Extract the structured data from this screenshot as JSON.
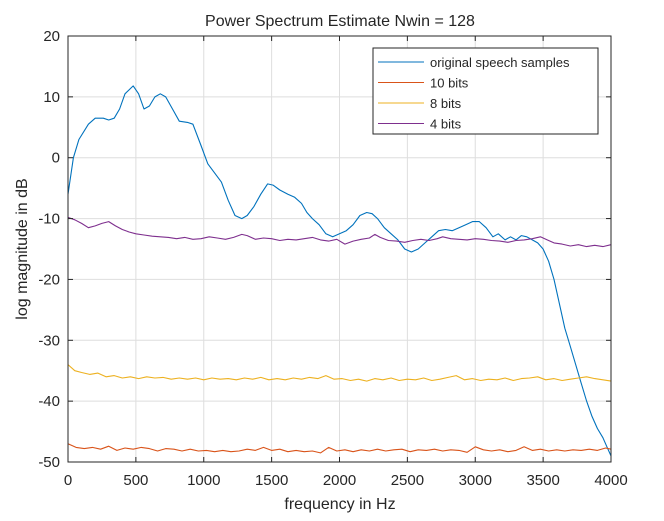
{
  "chart_data": {
    "type": "line",
    "title": "Power Spectrum Estimate Nwin = 128",
    "xlabel": "frequency in Hz",
    "ylabel": "log magnitude in dB",
    "xlim": [
      0,
      4000
    ],
    "ylim": [
      -50,
      20
    ],
    "xticks": [
      0,
      500,
      1000,
      1500,
      2000,
      2500,
      3000,
      3500,
      4000
    ],
    "yticks": [
      20,
      10,
      0,
      -10,
      -20,
      -30,
      -40,
      -50
    ],
    "grid": true,
    "legend_position": "top-right",
    "series": [
      {
        "name": "original speech samples",
        "color": "#0072BD",
        "points": [
          [
            0,
            -6
          ],
          [
            40,
            0
          ],
          [
            80,
            3
          ],
          [
            150,
            5.5
          ],
          [
            200,
            6.5
          ],
          [
            260,
            6.5
          ],
          [
            300,
            6.2
          ],
          [
            340,
            6.5
          ],
          [
            380,
            8
          ],
          [
            420,
            10.5
          ],
          [
            480,
            11.8
          ],
          [
            520,
            10.5
          ],
          [
            560,
            8
          ],
          [
            600,
            8.5
          ],
          [
            640,
            10
          ],
          [
            680,
            10.5
          ],
          [
            720,
            10
          ],
          [
            770,
            8
          ],
          [
            820,
            6
          ],
          [
            880,
            5.8
          ],
          [
            920,
            5.5
          ],
          [
            980,
            2
          ],
          [
            1030,
            -1
          ],
          [
            1080,
            -2.5
          ],
          [
            1130,
            -4
          ],
          [
            1180,
            -7
          ],
          [
            1230,
            -9.5
          ],
          [
            1280,
            -10
          ],
          [
            1320,
            -9.5
          ],
          [
            1370,
            -8
          ],
          [
            1420,
            -6
          ],
          [
            1470,
            -4.3
          ],
          [
            1510,
            -4.5
          ],
          [
            1560,
            -5.3
          ],
          [
            1620,
            -6
          ],
          [
            1670,
            -6.5
          ],
          [
            1720,
            -7.5
          ],
          [
            1760,
            -9
          ],
          [
            1800,
            -10
          ],
          [
            1850,
            -11
          ],
          [
            1900,
            -12.5
          ],
          [
            1950,
            -13
          ],
          [
            2000,
            -12.5
          ],
          [
            2050,
            -12
          ],
          [
            2100,
            -11
          ],
          [
            2150,
            -9.5
          ],
          [
            2200,
            -9
          ],
          [
            2240,
            -9.2
          ],
          [
            2280,
            -10
          ],
          [
            2330,
            -11.5
          ],
          [
            2380,
            -12.5
          ],
          [
            2430,
            -13.5
          ],
          [
            2480,
            -15
          ],
          [
            2530,
            -15.5
          ],
          [
            2580,
            -15
          ],
          [
            2630,
            -14
          ],
          [
            2680,
            -13
          ],
          [
            2730,
            -12
          ],
          [
            2780,
            -11.8
          ],
          [
            2830,
            -12
          ],
          [
            2880,
            -11.5
          ],
          [
            2930,
            -11
          ],
          [
            2980,
            -10.5
          ],
          [
            3030,
            -10.5
          ],
          [
            3080,
            -11.5
          ],
          [
            3130,
            -13
          ],
          [
            3170,
            -12.5
          ],
          [
            3220,
            -13.5
          ],
          [
            3260,
            -13
          ],
          [
            3300,
            -13.5
          ],
          [
            3340,
            -12.8
          ],
          [
            3380,
            -13
          ],
          [
            3420,
            -13.5
          ],
          [
            3460,
            -14
          ],
          [
            3500,
            -15
          ],
          [
            3540,
            -17
          ],
          [
            3580,
            -20
          ],
          [
            3620,
            -24
          ],
          [
            3660,
            -28
          ],
          [
            3700,
            -31
          ],
          [
            3740,
            -34
          ],
          [
            3780,
            -37
          ],
          [
            3820,
            -40
          ],
          [
            3860,
            -42.5
          ],
          [
            3900,
            -44.5
          ],
          [
            3940,
            -46
          ],
          [
            3970,
            -47.5
          ],
          [
            4000,
            -49
          ]
        ]
      },
      {
        "name": "10 bits",
        "color": "#D95319",
        "points": [
          [
            0,
            -47
          ],
          [
            60,
            -47.6
          ],
          [
            120,
            -47.8
          ],
          [
            180,
            -47.6
          ],
          [
            240,
            -47.9
          ],
          [
            300,
            -47.4
          ],
          [
            360,
            -48.1
          ],
          [
            420,
            -47.7
          ],
          [
            480,
            -47.9
          ],
          [
            540,
            -47.6
          ],
          [
            600,
            -47.8
          ],
          [
            660,
            -48.2
          ],
          [
            720,
            -47.8
          ],
          [
            780,
            -47.9
          ],
          [
            840,
            -48.2
          ],
          [
            900,
            -47.9
          ],
          [
            960,
            -48.2
          ],
          [
            1020,
            -48.1
          ],
          [
            1080,
            -48.3
          ],
          [
            1140,
            -48.1
          ],
          [
            1200,
            -48.3
          ],
          [
            1260,
            -48.2
          ],
          [
            1320,
            -47.9
          ],
          [
            1380,
            -48.1
          ],
          [
            1440,
            -47.6
          ],
          [
            1500,
            -48.1
          ],
          [
            1560,
            -47.9
          ],
          [
            1620,
            -48.3
          ],
          [
            1680,
            -48.1
          ],
          [
            1740,
            -48.3
          ],
          [
            1800,
            -48.2
          ],
          [
            1860,
            -48.5
          ],
          [
            1920,
            -47.6
          ],
          [
            1980,
            -48.2
          ],
          [
            2040,
            -48.0
          ],
          [
            2100,
            -48.3
          ],
          [
            2160,
            -48.0
          ],
          [
            2220,
            -48.2
          ],
          [
            2280,
            -47.9
          ],
          [
            2340,
            -48.2
          ],
          [
            2400,
            -48.0
          ],
          [
            2460,
            -47.9
          ],
          [
            2520,
            -48.3
          ],
          [
            2580,
            -48.0
          ],
          [
            2640,
            -48.1
          ],
          [
            2700,
            -47.9
          ],
          [
            2760,
            -48.2
          ],
          [
            2820,
            -48.0
          ],
          [
            2880,
            -48.1
          ],
          [
            2940,
            -48.4
          ],
          [
            3000,
            -47.5
          ],
          [
            3060,
            -48.0
          ],
          [
            3120,
            -48.2
          ],
          [
            3180,
            -48.0
          ],
          [
            3240,
            -48.3
          ],
          [
            3300,
            -48.1
          ],
          [
            3360,
            -47.5
          ],
          [
            3420,
            -48.1
          ],
          [
            3480,
            -47.9
          ],
          [
            3540,
            -48.2
          ],
          [
            3600,
            -48.0
          ],
          [
            3660,
            -48.2
          ],
          [
            3720,
            -48.0
          ],
          [
            3780,
            -48.1
          ],
          [
            3840,
            -47.9
          ],
          [
            3900,
            -48.1
          ],
          [
            3960,
            -47.7
          ],
          [
            4000,
            -47.9
          ]
        ]
      },
      {
        "name": "8 bits",
        "color": "#EDB120",
        "points": [
          [
            0,
            -34
          ],
          [
            50,
            -35
          ],
          [
            100,
            -35.3
          ],
          [
            160,
            -35.6
          ],
          [
            220,
            -35.4
          ],
          [
            280,
            -36
          ],
          [
            340,
            -35.8
          ],
          [
            400,
            -36.2
          ],
          [
            460,
            -36
          ],
          [
            520,
            -36.3
          ],
          [
            580,
            -36
          ],
          [
            640,
            -36.2
          ],
          [
            700,
            -36.1
          ],
          [
            760,
            -36.4
          ],
          [
            820,
            -36.2
          ],
          [
            880,
            -36.4
          ],
          [
            940,
            -36.2
          ],
          [
            1000,
            -36.5
          ],
          [
            1060,
            -36.2
          ],
          [
            1120,
            -36.4
          ],
          [
            1180,
            -36.3
          ],
          [
            1240,
            -36.5
          ],
          [
            1300,
            -36.2
          ],
          [
            1360,
            -36.4
          ],
          [
            1420,
            -36.1
          ],
          [
            1480,
            -36.5
          ],
          [
            1540,
            -36.3
          ],
          [
            1600,
            -36.5
          ],
          [
            1660,
            -36.2
          ],
          [
            1720,
            -36.4
          ],
          [
            1780,
            -36.1
          ],
          [
            1840,
            -36.3
          ],
          [
            1900,
            -35.8
          ],
          [
            1960,
            -36.4
          ],
          [
            2020,
            -36.3
          ],
          [
            2080,
            -36.6
          ],
          [
            2140,
            -36.4
          ],
          [
            2200,
            -36.7
          ],
          [
            2260,
            -36.3
          ],
          [
            2320,
            -36.5
          ],
          [
            2380,
            -36.2
          ],
          [
            2440,
            -36.6
          ],
          [
            2500,
            -36.4
          ],
          [
            2560,
            -36.5
          ],
          [
            2620,
            -36.2
          ],
          [
            2680,
            -36.6
          ],
          [
            2740,
            -36.4
          ],
          [
            2800,
            -36.1
          ],
          [
            2860,
            -35.8
          ],
          [
            2920,
            -36.5
          ],
          [
            2980,
            -36.3
          ],
          [
            3040,
            -36.6
          ],
          [
            3100,
            -36.4
          ],
          [
            3160,
            -36.5
          ],
          [
            3220,
            -36.2
          ],
          [
            3280,
            -36.6
          ],
          [
            3340,
            -36.3
          ],
          [
            3400,
            -36.2
          ],
          [
            3460,
            -36.0
          ],
          [
            3520,
            -36.5
          ],
          [
            3580,
            -36.3
          ],
          [
            3640,
            -36.6
          ],
          [
            3700,
            -36.4
          ],
          [
            3760,
            -36.2
          ],
          [
            3820,
            -36.0
          ],
          [
            3880,
            -36.3
          ],
          [
            3940,
            -36.5
          ],
          [
            4000,
            -36.7
          ]
        ]
      },
      {
        "name": "4 bits",
        "color": "#7E2F8E",
        "points": [
          [
            0,
            -9.8
          ],
          [
            50,
            -10.2
          ],
          [
            100,
            -10.8
          ],
          [
            150,
            -11.5
          ],
          [
            200,
            -11.2
          ],
          [
            250,
            -10.8
          ],
          [
            300,
            -10.5
          ],
          [
            350,
            -11.2
          ],
          [
            400,
            -11.8
          ],
          [
            450,
            -12.2
          ],
          [
            500,
            -12.5
          ],
          [
            560,
            -12.7
          ],
          [
            620,
            -12.9
          ],
          [
            680,
            -13
          ],
          [
            740,
            -13.1
          ],
          [
            800,
            -13.3
          ],
          [
            860,
            -13.1
          ],
          [
            920,
            -13.4
          ],
          [
            980,
            -13.3
          ],
          [
            1040,
            -13
          ],
          [
            1100,
            -13.2
          ],
          [
            1160,
            -13.4
          ],
          [
            1220,
            -13.1
          ],
          [
            1280,
            -12.6
          ],
          [
            1320,
            -12.8
          ],
          [
            1380,
            -13.4
          ],
          [
            1440,
            -13.2
          ],
          [
            1500,
            -13.3
          ],
          [
            1560,
            -13.6
          ],
          [
            1620,
            -13.4
          ],
          [
            1680,
            -13.5
          ],
          [
            1740,
            -13.3
          ],
          [
            1800,
            -13.1
          ],
          [
            1860,
            -13.5
          ],
          [
            1920,
            -13.7
          ],
          [
            1980,
            -13.4
          ],
          [
            2040,
            -14.2
          ],
          [
            2100,
            -13.7
          ],
          [
            2160,
            -13.4
          ],
          [
            2220,
            -13.2
          ],
          [
            2260,
            -12.6
          ],
          [
            2300,
            -13.1
          ],
          [
            2360,
            -13.6
          ],
          [
            2420,
            -13.7
          ],
          [
            2480,
            -13.9
          ],
          [
            2540,
            -13.6
          ],
          [
            2600,
            -13.4
          ],
          [
            2660,
            -13.6
          ],
          [
            2720,
            -13.3
          ],
          [
            2760,
            -13
          ],
          [
            2820,
            -13.3
          ],
          [
            2880,
            -13.4
          ],
          [
            2940,
            -13.5
          ],
          [
            3000,
            -13.3
          ],
          [
            3060,
            -13.4
          ],
          [
            3120,
            -13.6
          ],
          [
            3180,
            -13.7
          ],
          [
            3240,
            -13.9
          ],
          [
            3300,
            -13.6
          ],
          [
            3360,
            -13.5
          ],
          [
            3420,
            -13.3
          ],
          [
            3480,
            -13
          ],
          [
            3530,
            -13.5
          ],
          [
            3580,
            -14
          ],
          [
            3640,
            -14.2
          ],
          [
            3700,
            -14.5
          ],
          [
            3760,
            -14.3
          ],
          [
            3820,
            -14.6
          ],
          [
            3880,
            -14.4
          ],
          [
            3940,
            -14.6
          ],
          [
            4000,
            -14.3
          ]
        ]
      }
    ]
  }
}
